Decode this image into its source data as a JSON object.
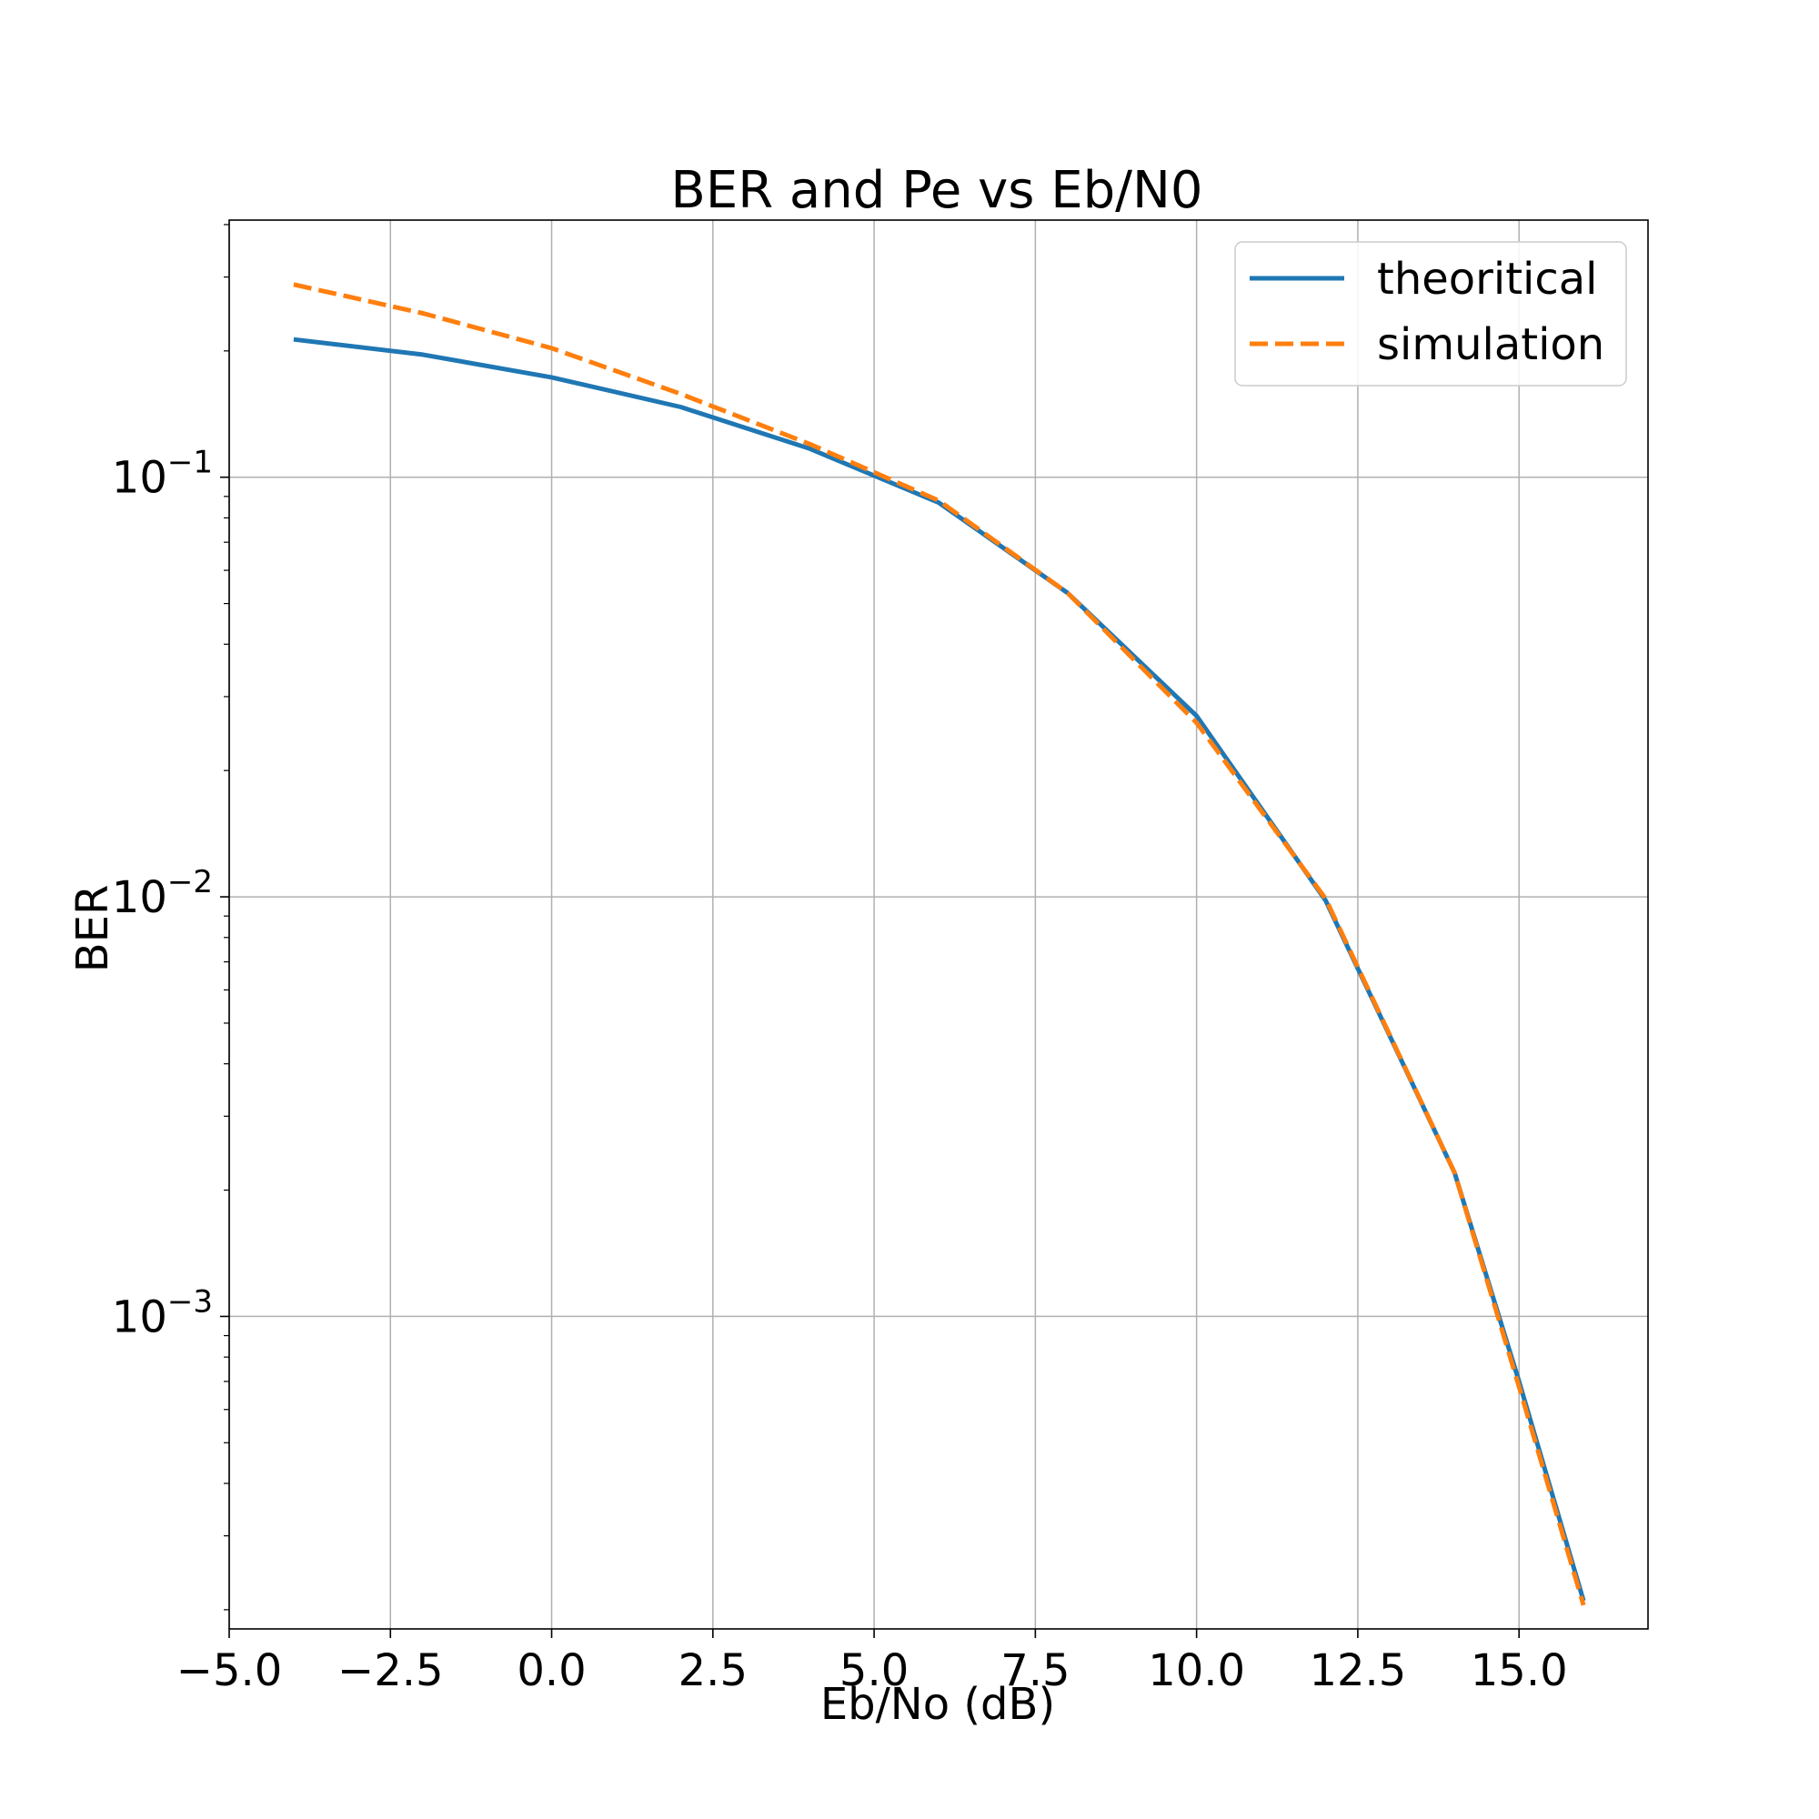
{
  "chart_data": {
    "type": "line",
    "title": "BER and Pe vs Eb/N0",
    "xlabel": "Eb/No (dB)",
    "ylabel": "BER",
    "xlim": [
      -5.0,
      17.0
    ],
    "ylim": [
      0.00018,
      0.41
    ],
    "yscale": "log",
    "grid": true,
    "legend_position": "top-right",
    "x_ticks": [
      -5.0,
      -2.5,
      0.0,
      2.5,
      5.0,
      7.5,
      10.0,
      12.5,
      15.0
    ],
    "x_tick_labels": [
      "−5.0",
      "−2.5",
      "0.0",
      "2.5",
      "5.0",
      "7.5",
      "10.0",
      "12.5",
      "15.0"
    ],
    "y_ticks": [
      0.1,
      0.01,
      0.001
    ],
    "y_tick_labels": [
      {
        "base": "10",
        "exp": "−1"
      },
      {
        "base": "10",
        "exp": "−2"
      },
      {
        "base": "10",
        "exp": "−3"
      }
    ],
    "x": [
      -4,
      -2,
      0,
      2,
      4,
      6,
      8,
      10,
      12,
      14,
      15,
      16
    ],
    "series": [
      {
        "name": "theoritical",
        "color": "#1f77b4",
        "style": "solid",
        "values": [
          0.213,
          0.196,
          0.173,
          0.147,
          0.117,
          0.087,
          0.053,
          0.027,
          0.0098,
          0.0022,
          0.0007,
          0.00021
        ]
      },
      {
        "name": "simulation",
        "color": "#ff7f0e",
        "style": "dashed",
        "values": [
          0.288,
          0.246,
          0.203,
          0.158,
          0.12,
          0.088,
          0.053,
          0.026,
          0.0099,
          0.0022,
          0.00068,
          0.000205
        ]
      }
    ]
  }
}
